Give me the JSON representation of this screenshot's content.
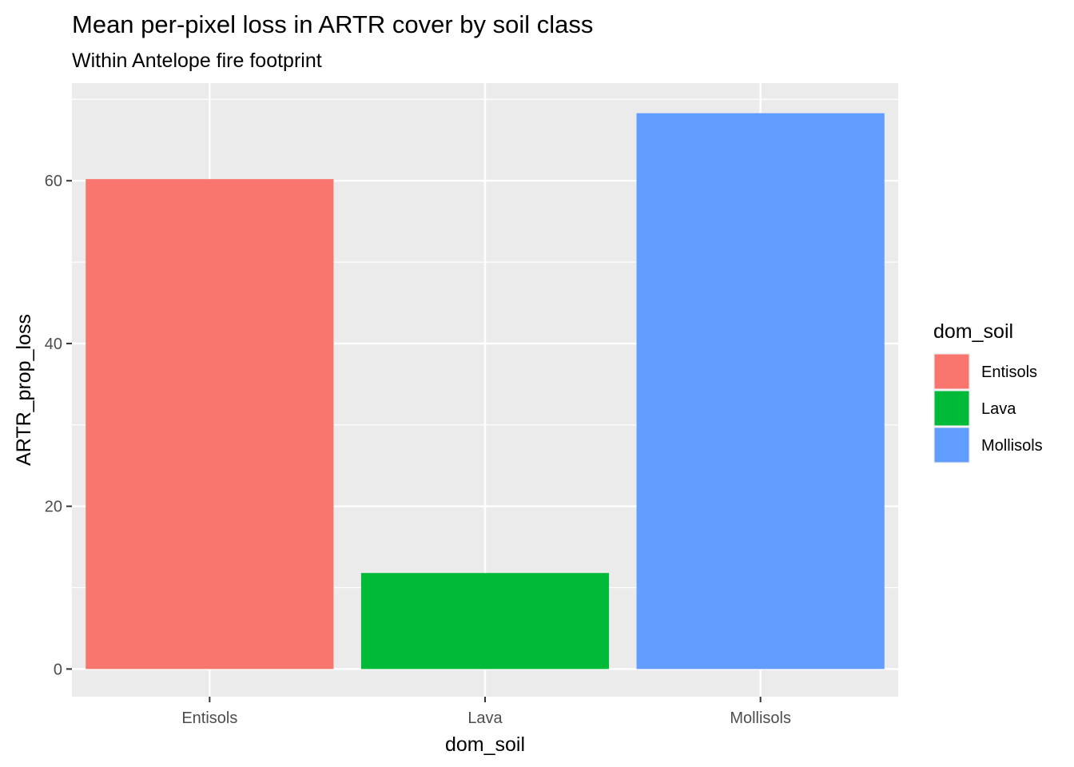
{
  "chart_data": {
    "type": "bar",
    "title": "Mean per-pixel loss in ARTR cover by soil class",
    "subtitle": "Within Antelope fire footprint",
    "xlabel": "dom_soil",
    "ylabel": "ARTR_prop_loss",
    "categories": [
      "Entisols",
      "Lava",
      "Mollisols"
    ],
    "values": [
      60.2,
      11.8,
      68.3
    ],
    "colors": [
      "#F8766D",
      "#00BA38",
      "#619CFF"
    ],
    "ylim": [
      -3.4,
      72.0
    ],
    "yticks": [
      0,
      20,
      40,
      60
    ],
    "ytick_labels": [
      "0",
      "20",
      "40",
      "60"
    ],
    "grid": true,
    "panel_background": "#EBEBEB",
    "legend": {
      "title": "dom_soil",
      "placement": "right",
      "items": [
        "Entisols",
        "Lava",
        "Mollisols"
      ]
    }
  }
}
